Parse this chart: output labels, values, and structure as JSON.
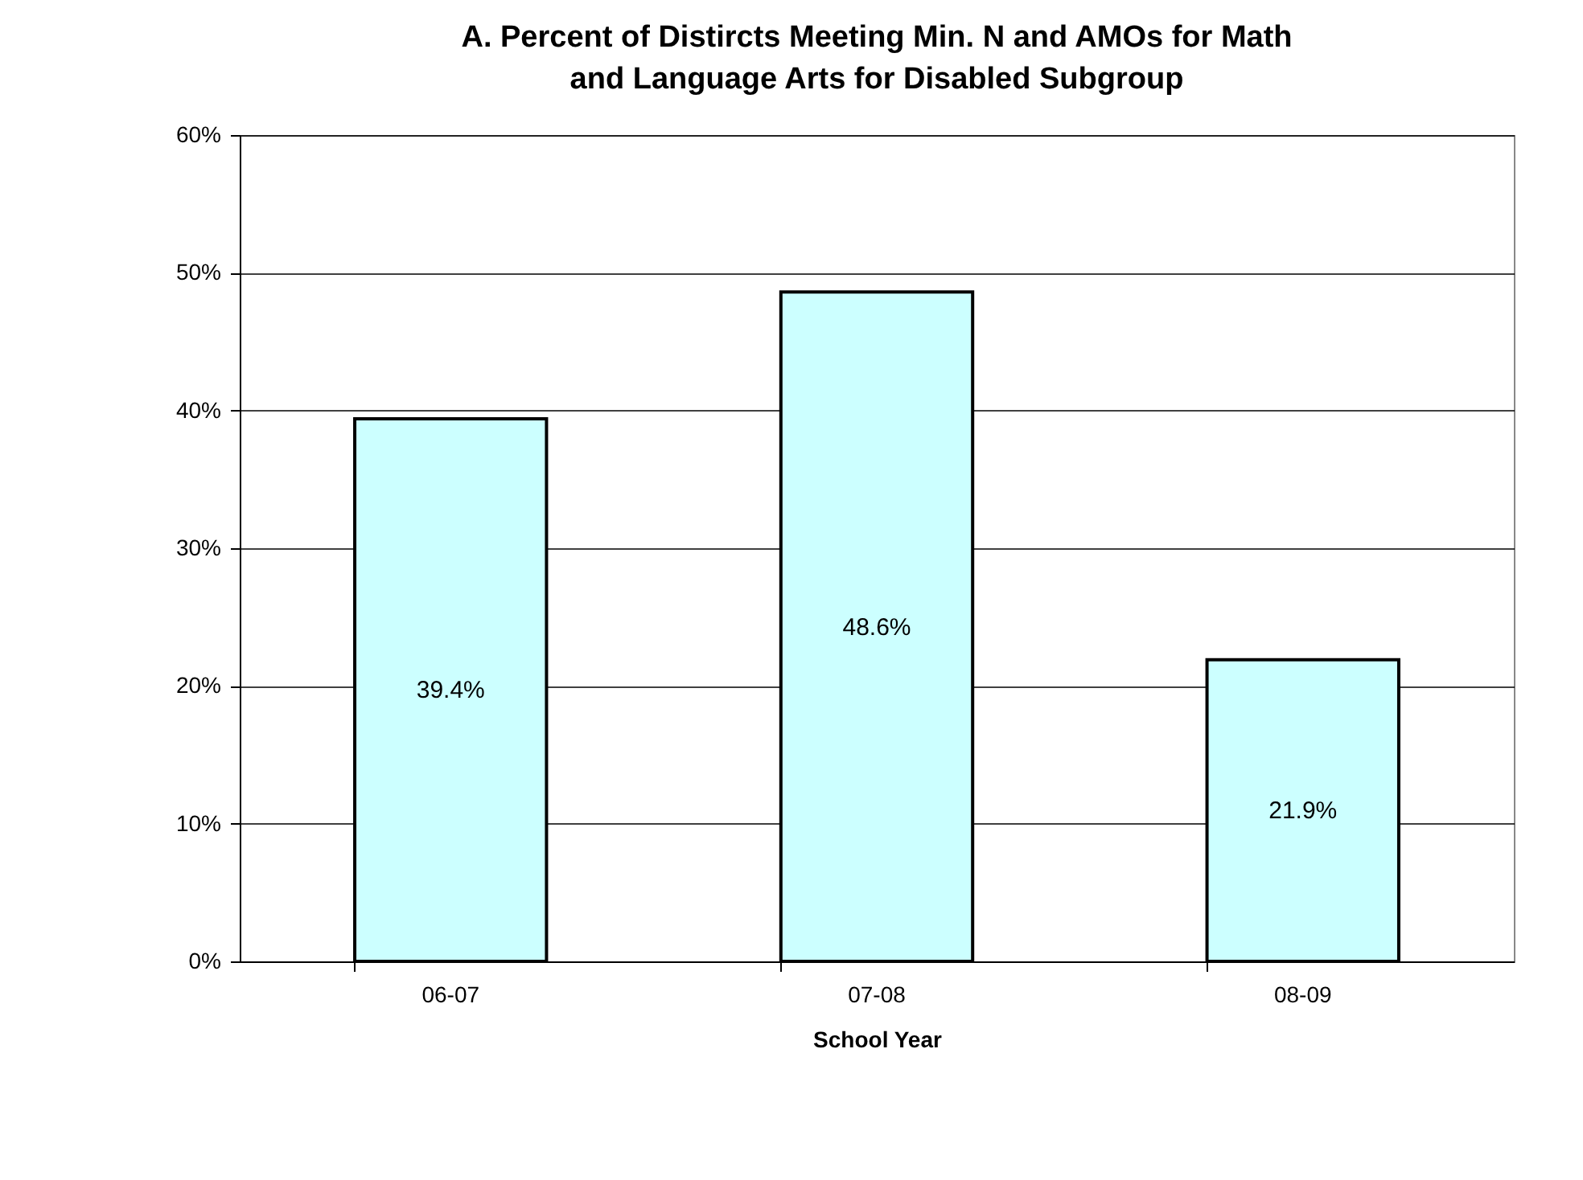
{
  "chart_data": {
    "type": "bar",
    "title": "A. Percent of Distircts Meeting Min. N  and AMOs for Math and Language Arts for Disabled Subgroup",
    "xlabel": "School Year",
    "categories": [
      "06-07",
      "07-08",
      "08-09"
    ],
    "values": [
      39.4,
      48.6,
      21.9
    ],
    "value_labels": [
      "39.4%",
      "48.6%",
      "21.9%"
    ],
    "color": "#ccffff",
    "ylim": [
      0,
      60
    ],
    "yticks": [
      {
        "value": 0,
        "label": "0%"
      },
      {
        "value": 10,
        "label": "10%"
      },
      {
        "value": 20,
        "label": "20%"
      },
      {
        "value": 30,
        "label": "30%"
      },
      {
        "value": 40,
        "label": "40%"
      },
      {
        "value": 50,
        "label": "50%"
      },
      {
        "value": 60,
        "label": "60%"
      }
    ],
    "grid": "y"
  }
}
